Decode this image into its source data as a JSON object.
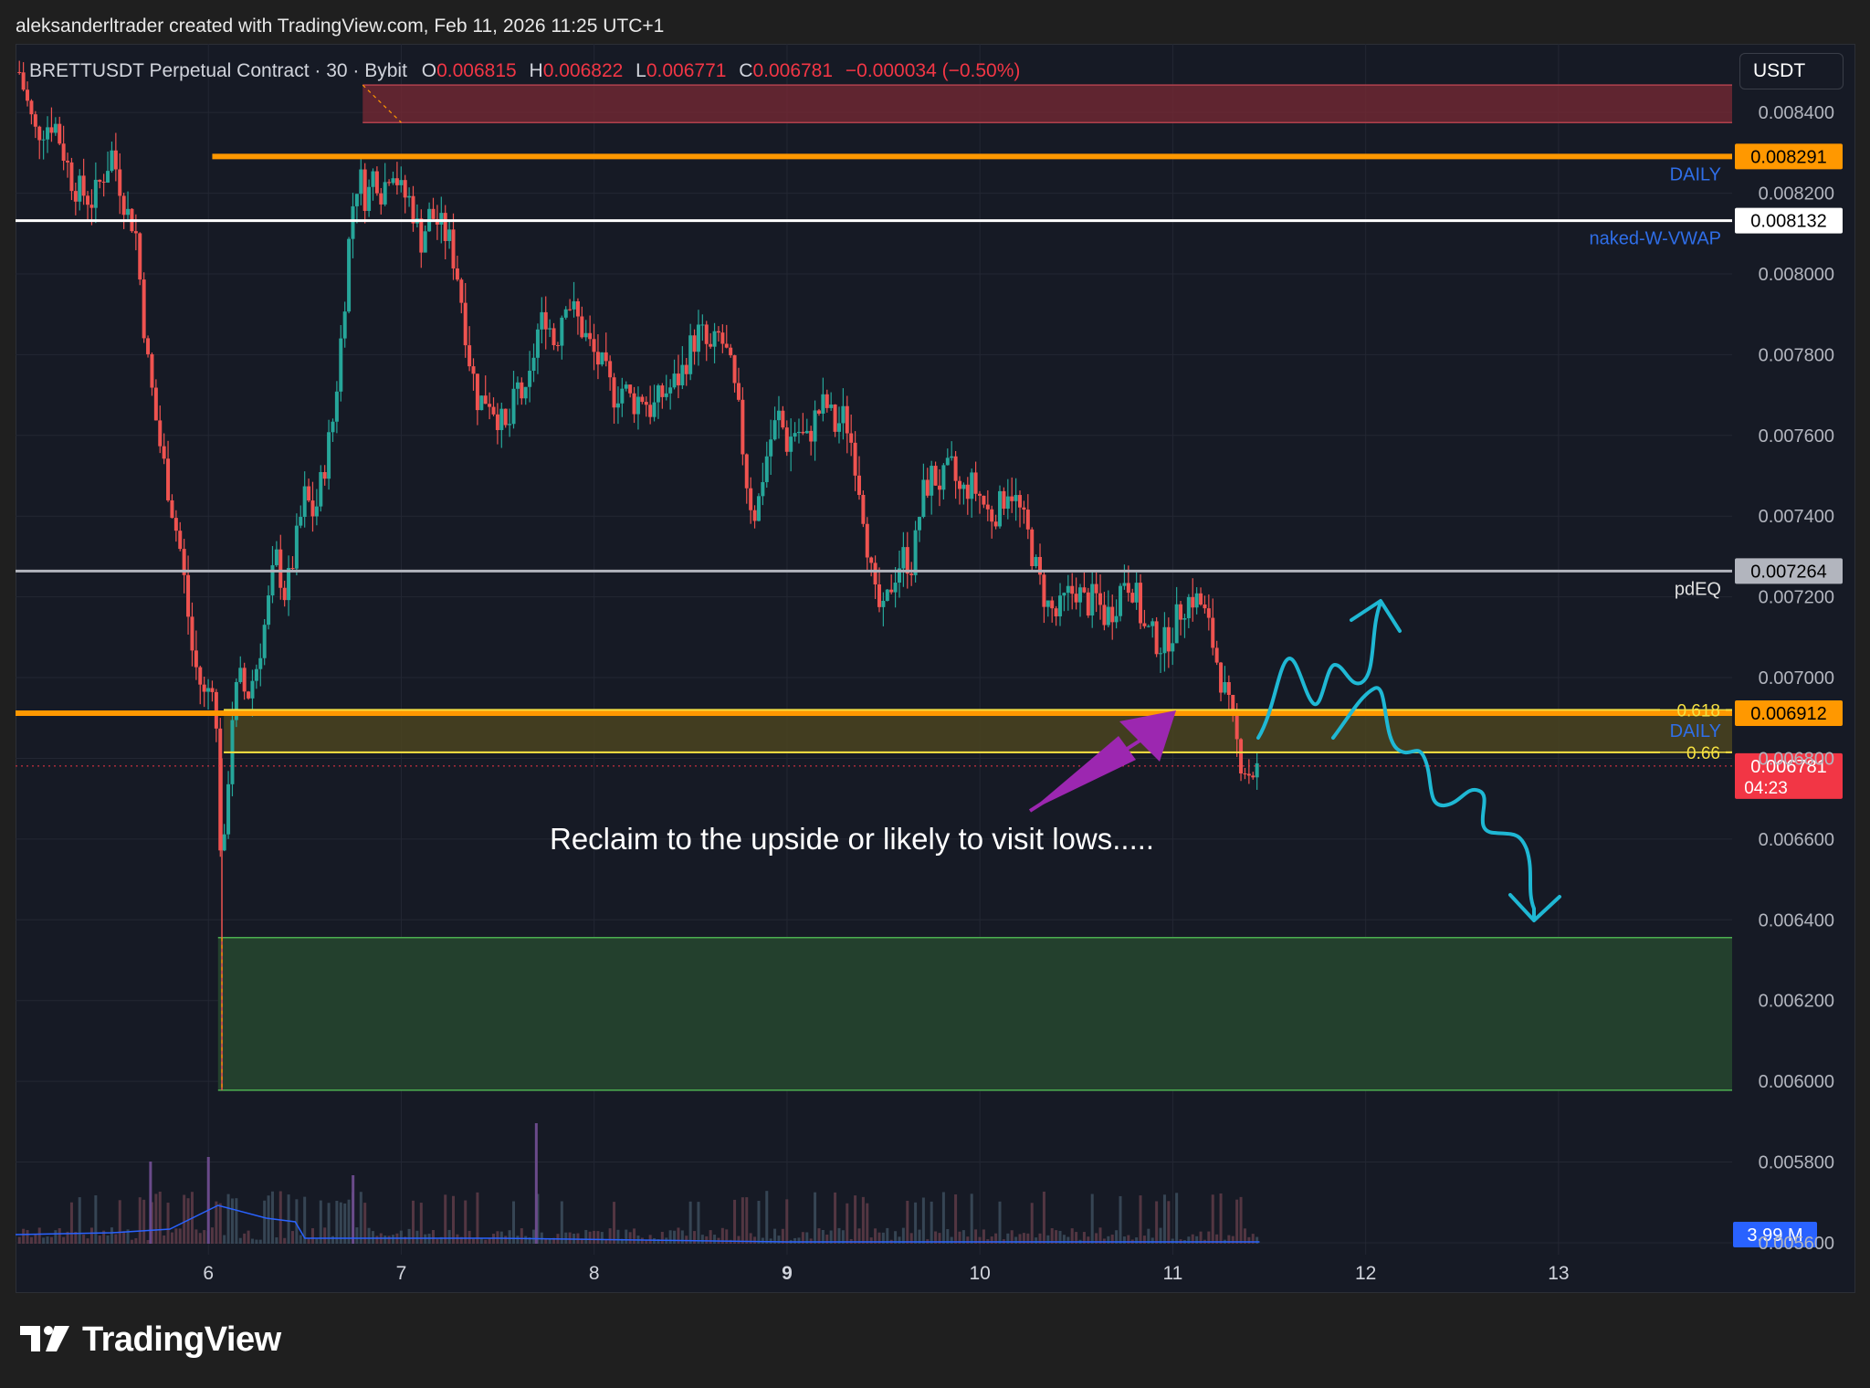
{
  "header": {
    "credit": "aleksanderltrader created with TradingView.com, Feb 11, 2026 11:25 UTC+1"
  },
  "legend": {
    "symbol": "BRETTUSDT Perpetual Contract · 30 · Bybit",
    "o_label": "O",
    "o_value": "0.006815",
    "h_label": "H",
    "h_value": "0.006822",
    "l_label": "L",
    "l_value": "0.006771",
    "c_label": "C",
    "c_value": "0.006781",
    "change": "−0.000034 (−0.50%)"
  },
  "currency_button": "USDT",
  "footer": {
    "brand": "TradingView"
  },
  "colors": {
    "background": "#161a25",
    "up": "#26a69a",
    "down": "#ef5350",
    "orange_level": "#ff9800",
    "yellow_fib": "#f5e042",
    "supply_zone": "#7a2a34",
    "demand_zone": "#23402d",
    "arrow_purple": "#9c27b0",
    "path_cyan": "#1fb8d4",
    "label_blue": "#2f6ee8"
  },
  "chart_data": {
    "type": "candlestick",
    "symbol": "BRETTUSDT",
    "interval": "30",
    "exchange": "Bybit",
    "ylim": [
      0.00548,
      0.00857
    ],
    "y_ticks": [
      "0.008400",
      "0.008200",
      "0.008000",
      "0.007800",
      "0.007600",
      "0.007400",
      "0.007200",
      "0.007000",
      "0.006800",
      "0.006600",
      "0.006400",
      "0.006200",
      "0.006000",
      "0.005800",
      "0.005600"
    ],
    "x_ticks": [
      "6",
      "7",
      "8",
      "9",
      "10",
      "11",
      "12",
      "13"
    ],
    "x_tick_bold": "9",
    "x_range_days": [
      5.0,
      13.9
    ],
    "last_price": 0.006781,
    "countdown": "04:23",
    "volume_badge": "3.99 M",
    "price_path": [
      [
        5.02,
        0.0085
      ],
      [
        5.1,
        0.00835
      ],
      [
        5.2,
        0.00838
      ],
      [
        5.3,
        0.00822
      ],
      [
        5.4,
        0.00818
      ],
      [
        5.5,
        0.0083
      ],
      [
        5.58,
        0.00815
      ],
      [
        5.62,
        0.00812
      ],
      [
        5.68,
        0.0078
      ],
      [
        5.74,
        0.0076
      ],
      [
        5.8,
        0.00745
      ],
      [
        5.86,
        0.0073
      ],
      [
        5.92,
        0.00705
      ],
      [
        5.98,
        0.00695
      ],
      [
        6.02,
        0.007
      ],
      [
        6.05,
        0.0068
      ],
      [
        6.07,
        0.00645
      ],
      [
        6.09,
        0.00665
      ],
      [
        6.12,
        0.0069
      ],
      [
        6.16,
        0.007
      ],
      [
        6.2,
        0.00695
      ],
      [
        6.25,
        0.00703
      ],
      [
        6.3,
        0.00715
      ],
      [
        6.35,
        0.0073
      ],
      [
        6.4,
        0.0072
      ],
      [
        6.45,
        0.00732
      ],
      [
        6.5,
        0.00745
      ],
      [
        6.55,
        0.0074
      ],
      [
        6.6,
        0.00752
      ],
      [
        6.65,
        0.00765
      ],
      [
        6.7,
        0.0079
      ],
      [
        6.74,
        0.00815
      ],
      [
        6.78,
        0.00825
      ],
      [
        6.82,
        0.00818
      ],
      [
        6.86,
        0.00826
      ],
      [
        6.9,
        0.0082
      ],
      [
        6.95,
        0.00828
      ],
      [
        7.0,
        0.0082
      ],
      [
        7.05,
        0.00818
      ],
      [
        7.1,
        0.00808
      ],
      [
        7.15,
        0.00815
      ],
      [
        7.2,
        0.00812
      ],
      [
        7.25,
        0.00808
      ],
      [
        7.3,
        0.00798
      ],
      [
        7.35,
        0.0078
      ],
      [
        7.4,
        0.00768
      ],
      [
        7.45,
        0.0077
      ],
      [
        7.5,
        0.00765
      ],
      [
        7.55,
        0.0076
      ],
      [
        7.6,
        0.00772
      ],
      [
        7.65,
        0.00768
      ],
      [
        7.7,
        0.00785
      ],
      [
        7.75,
        0.0079
      ],
      [
        7.8,
        0.00782
      ],
      [
        7.85,
        0.00795
      ],
      [
        7.9,
        0.0079
      ],
      [
        7.95,
        0.00785
      ],
      [
        8.0,
        0.0078
      ],
      [
        8.05,
        0.00776
      ],
      [
        8.1,
        0.0077
      ],
      [
        8.15,
        0.00772
      ],
      [
        8.2,
        0.00768
      ],
      [
        8.25,
        0.0077
      ],
      [
        8.3,
        0.00766
      ],
      [
        8.35,
        0.0077
      ],
      [
        8.4,
        0.00772
      ],
      [
        8.45,
        0.00775
      ],
      [
        8.5,
        0.00782
      ],
      [
        8.55,
        0.00786
      ],
      [
        8.6,
        0.0078
      ],
      [
        8.65,
        0.00785
      ],
      [
        8.7,
        0.00778
      ],
      [
        8.75,
        0.00765
      ],
      [
        8.8,
        0.00745
      ],
      [
        8.84,
        0.0074
      ],
      [
        8.88,
        0.00752
      ],
      [
        8.92,
        0.0076
      ],
      [
        8.96,
        0.00765
      ],
      [
        9.0,
        0.00758
      ],
      [
        9.05,
        0.00762
      ],
      [
        9.1,
        0.00758
      ],
      [
        9.15,
        0.00765
      ],
      [
        9.2,
        0.00768
      ],
      [
        9.25,
        0.00762
      ],
      [
        9.3,
        0.00765
      ],
      [
        9.35,
        0.00755
      ],
      [
        9.4,
        0.0074
      ],
      [
        9.45,
        0.0072
      ],
      [
        9.5,
        0.00715
      ],
      [
        9.55,
        0.00725
      ],
      [
        9.6,
        0.0073
      ],
      [
        9.65,
        0.00728
      ],
      [
        9.7,
        0.00745
      ],
      [
        9.75,
        0.0075
      ],
      [
        9.8,
        0.00748
      ],
      [
        9.85,
        0.00752
      ],
      [
        9.9,
        0.00745
      ],
      [
        9.95,
        0.00748
      ],
      [
        10.0,
        0.00745
      ],
      [
        10.05,
        0.0074
      ],
      [
        10.1,
        0.00742
      ],
      [
        10.15,
        0.00748
      ],
      [
        10.2,
        0.00742
      ],
      [
        10.25,
        0.00735
      ],
      [
        10.3,
        0.00725
      ],
      [
        10.35,
        0.00718
      ],
      [
        10.4,
        0.00715
      ],
      [
        10.45,
        0.0072
      ],
      [
        10.5,
        0.00722
      ],
      [
        10.55,
        0.00718
      ],
      [
        10.6,
        0.0072
      ],
      [
        10.65,
        0.00715
      ],
      [
        10.7,
        0.00718
      ],
      [
        10.75,
        0.00725
      ],
      [
        10.8,
        0.00722
      ],
      [
        10.85,
        0.00712
      ],
      [
        10.9,
        0.0071
      ],
      [
        10.95,
        0.00708
      ],
      [
        11.0,
        0.00712
      ],
      [
        11.05,
        0.00718
      ],
      [
        11.1,
        0.0072
      ],
      [
        11.15,
        0.00718
      ],
      [
        11.2,
        0.0071
      ],
      [
        11.25,
        0.007
      ],
      [
        11.3,
        0.0069
      ],
      [
        11.35,
        0.0068
      ],
      [
        11.4,
        0.00676
      ],
      [
        11.45,
        0.00678
      ]
    ],
    "levels": [
      {
        "name": "DAILY",
        "value": 0.008291,
        "badge": "0.008291",
        "color": "#ff9800"
      },
      {
        "name": "naked-W-VWAP",
        "value": 0.008132,
        "badge": "0.008132",
        "color": "#ffffff"
      },
      {
        "name": "pdEQ",
        "value": 0.007264,
        "badge": "0.007264",
        "color": "#b2b5be"
      },
      {
        "name": "DAILY",
        "value": 0.006912,
        "badge": "0.006912",
        "color": "#ff9800"
      }
    ],
    "fib_levels": [
      {
        "label": "0.618",
        "value": 0.00692
      },
      {
        "label": "0.66",
        "value": 0.006815
      }
    ],
    "zones": [
      {
        "kind": "supply",
        "top": 0.008468,
        "bottom": 0.008375
      },
      {
        "kind": "golden-pocket",
        "top": 0.00692,
        "bottom": 0.006815
      },
      {
        "kind": "demand",
        "top": 0.006356,
        "bottom": 0.005978
      }
    ],
    "annotation": "Reclaim to the upside or likely to visit lows....."
  }
}
